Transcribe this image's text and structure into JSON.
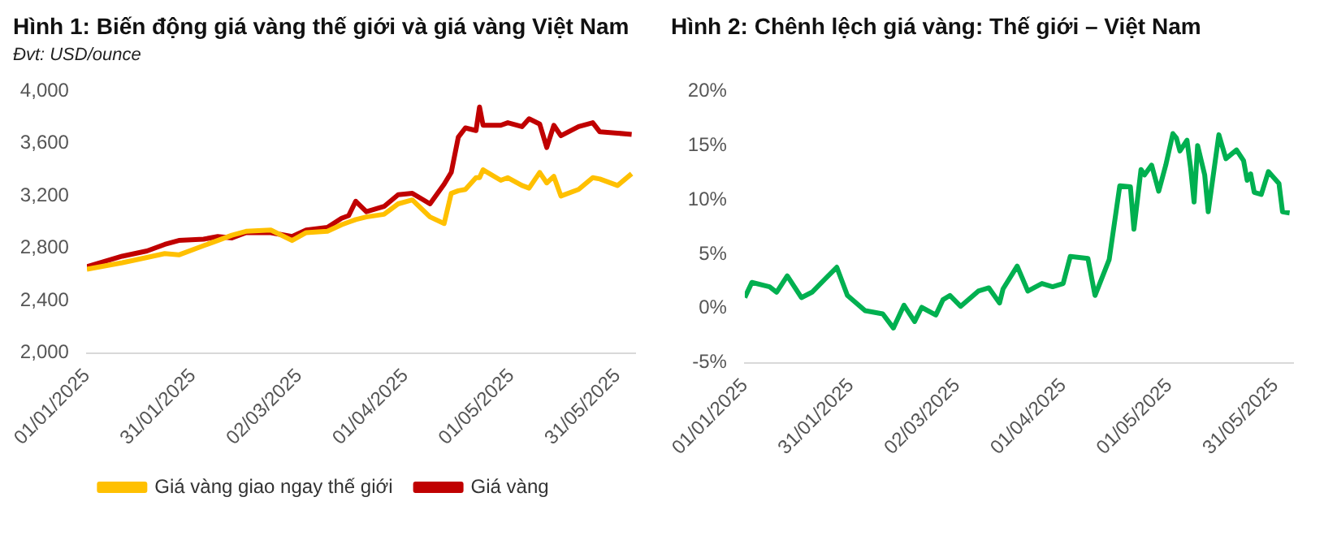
{
  "chart_data": [
    {
      "type": "line",
      "title": "Hình 1: Biến động giá vàng thế giới và giá vàng Việt Nam",
      "subtitle": "Đvt: USD/ounce",
      "x": [
        "2025-01-01",
        "2025-01-11",
        "2025-01-18",
        "2025-01-23",
        "2025-01-27",
        "2025-02-03",
        "2025-02-07",
        "2025-02-11",
        "2025-02-15",
        "2025-02-22",
        "2025-02-28",
        "2025-03-04",
        "2025-03-10",
        "2025-03-14",
        "2025-03-16",
        "2025-03-18",
        "2025-03-21",
        "2025-03-26",
        "2025-03-30",
        "2025-04-03",
        "2025-04-08",
        "2025-04-12",
        "2025-04-14",
        "2025-04-16",
        "2025-04-18",
        "2025-04-21",
        "2025-04-22",
        "2025-04-23",
        "2025-04-28",
        "2025-04-30",
        "2025-05-04",
        "2025-05-06",
        "2025-05-09",
        "2025-05-11",
        "2025-05-13",
        "2025-05-15",
        "2025-05-20",
        "2025-05-24",
        "2025-05-26",
        "2025-05-31",
        "2025-06-04"
      ],
      "series": [
        {
          "name": "Giá vàng giao ngay thế giới",
          "color": "#ffc000",
          "values": [
            2640,
            2690,
            2730,
            2760,
            2750,
            2820,
            2860,
            2900,
            2930,
            2940,
            2860,
            2920,
            2930,
            2980,
            3000,
            3020,
            3040,
            3060,
            3140,
            3170,
            3040,
            2990,
            3220,
            3240,
            3250,
            3340,
            3340,
            3400,
            3320,
            3340,
            3280,
            3260,
            3380,
            3300,
            3350,
            3200,
            3250,
            3340,
            3330,
            3280,
            3370
          ]
        },
        {
          "name": "Giá vàng",
          "color": "#c00000",
          "values": [
            2660,
            2740,
            2780,
            2830,
            2860,
            2870,
            2890,
            2880,
            2920,
            2920,
            2890,
            2940,
            2960,
            3030,
            3050,
            3160,
            3080,
            3120,
            3210,
            3220,
            3140,
            3290,
            3380,
            3650,
            3720,
            3700,
            3880,
            3740,
            3740,
            3760,
            3730,
            3790,
            3750,
            3570,
            3740,
            3660,
            3730,
            3760,
            3690,
            3680,
            3670
          ]
        }
      ],
      "xlim": [
        "2025-01-01",
        "2025-06-05"
      ],
      "xticks": [
        {
          "value": "2025-01-01",
          "label": "01/01/2025"
        },
        {
          "value": "2025-01-31",
          "label": "31/01/2025"
        },
        {
          "value": "2025-03-02",
          "label": "02/03/2025"
        },
        {
          "value": "2025-04-01",
          "label": "01/04/2025"
        },
        {
          "value": "2025-05-01",
          "label": "01/05/2025"
        },
        {
          "value": "2025-05-31",
          "label": "31/05/2025"
        }
      ],
      "ylim": [
        2000,
        4000
      ],
      "yticks": [
        {
          "value": 2000,
          "label": "2,000"
        },
        {
          "value": 2400,
          "label": "2,400"
        },
        {
          "value": 2800,
          "label": "2,800"
        },
        {
          "value": 3200,
          "label": "3,200"
        },
        {
          "value": 3600,
          "label": "3,600"
        },
        {
          "value": 4000,
          "label": "4,000"
        }
      ],
      "legend": "bottom",
      "marker": "none"
    },
    {
      "type": "line",
      "title": "Hình 2: Chênh lệch giá vàng: Thế giới – Việt Nam",
      "x": [
        "2025-01-01",
        "2025-01-03",
        "2025-01-08",
        "2025-01-10",
        "2025-01-13",
        "2025-01-17",
        "2025-01-20",
        "2025-01-27",
        "2025-01-30",
        "2025-02-04",
        "2025-02-09",
        "2025-02-12",
        "2025-02-15",
        "2025-02-18",
        "2025-02-20",
        "2025-02-24",
        "2025-02-26",
        "2025-02-28",
        "2025-03-03",
        "2025-03-08",
        "2025-03-11",
        "2025-03-14",
        "2025-03-15",
        "2025-03-19",
        "2025-03-22",
        "2025-03-26",
        "2025-03-29",
        "2025-04-01",
        "2025-04-03",
        "2025-04-08",
        "2025-04-10",
        "2025-04-14",
        "2025-04-17",
        "2025-04-20",
        "2025-04-21",
        "2025-04-23",
        "2025-04-24",
        "2025-04-26",
        "2025-04-28",
        "2025-04-30",
        "2025-05-02",
        "2025-05-03",
        "2025-05-04",
        "2025-05-06",
        "2025-05-07",
        "2025-05-08",
        "2025-05-09",
        "2025-05-11",
        "2025-05-12",
        "2025-05-15",
        "2025-05-17",
        "2025-05-20",
        "2025-05-22",
        "2025-05-23",
        "2025-05-24",
        "2025-05-25",
        "2025-05-27",
        "2025-05-29",
        "2025-06-01",
        "2025-06-02",
        "2025-06-04"
      ],
      "series": [
        {
          "color": "#00b050",
          "values": [
            1.0,
            2.4,
            2.0,
            1.5,
            3.0,
            1.0,
            1.5,
            3.8,
            1.2,
            -0.2,
            -0.5,
            -1.8,
            0.3,
            -1.2,
            0.1,
            -0.6,
            0.8,
            1.2,
            0.2,
            1.6,
            1.9,
            0.5,
            1.8,
            3.9,
            1.6,
            2.3,
            2.0,
            2.3,
            4.8,
            4.6,
            1.2,
            4.5,
            11.3,
            11.2,
            7.3,
            12.8,
            12.3,
            13.2,
            10.8,
            13.2,
            16.1,
            15.7,
            14.5,
            15.5,
            13.0,
            9.8,
            15.0,
            12.3,
            8.9,
            16.0,
            13.8,
            14.6,
            13.6,
            11.8,
            12.4,
            10.7,
            10.5,
            12.6,
            11.5,
            8.9,
            8.8
          ]
        }
      ],
      "xlim": [
        "2025-01-01",
        "2025-06-05"
      ],
      "xticks": [
        {
          "value": "2025-01-01",
          "label": "01/01/2025"
        },
        {
          "value": "2025-01-31",
          "label": "31/01/2025"
        },
        {
          "value": "2025-03-02",
          "label": "02/03/2025"
        },
        {
          "value": "2025-04-01",
          "label": "01/04/2025"
        },
        {
          "value": "2025-05-01",
          "label": "01/05/2025"
        },
        {
          "value": "2025-05-31",
          "label": "31/05/2025"
        }
      ],
      "ylim": [
        -5,
        20
      ],
      "yticks": [
        {
          "value": -5,
          "label": "-5%"
        },
        {
          "value": 0,
          "label": "0%"
        },
        {
          "value": 5,
          "label": "5%"
        },
        {
          "value": 10,
          "label": "10%"
        },
        {
          "value": 15,
          "label": "15%"
        },
        {
          "value": 20,
          "label": "20%"
        }
      ],
      "marker": "none"
    }
  ]
}
